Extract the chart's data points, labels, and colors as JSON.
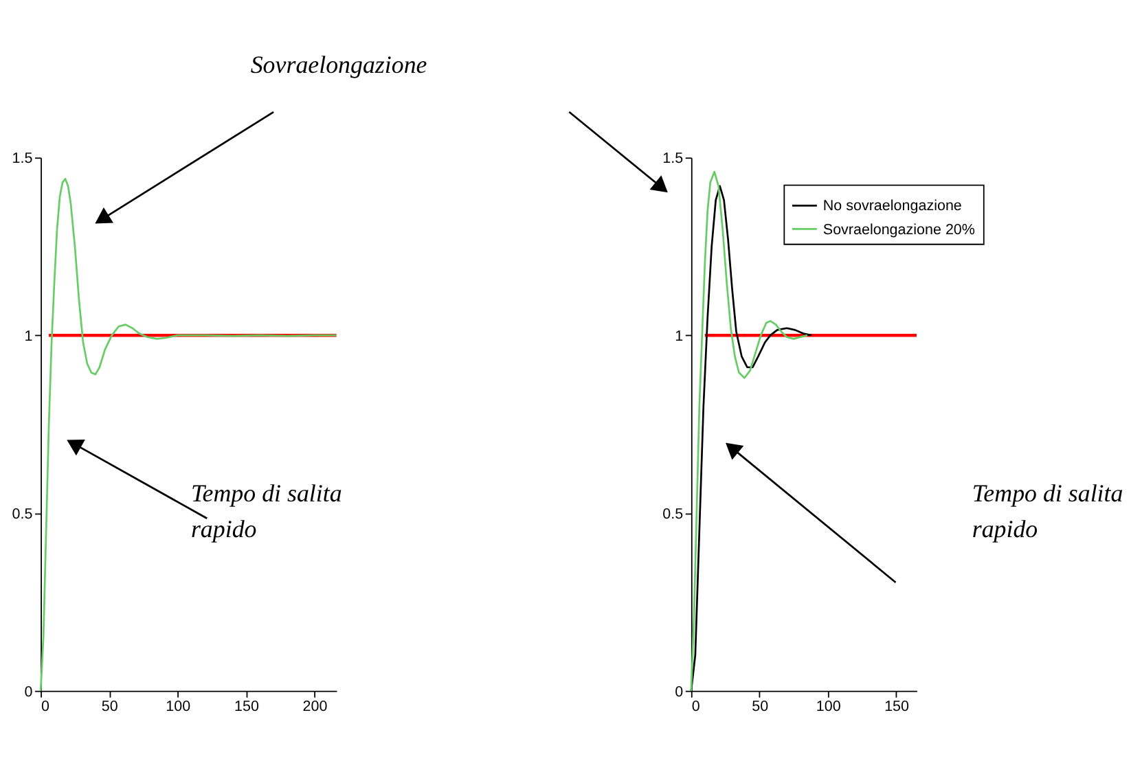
{
  "chart_data": [
    {
      "type": "line",
      "xlim": [
        0,
        216
      ],
      "ylim": [
        0,
        1.5
      ],
      "xticks": [
        0,
        50,
        100,
        150,
        200
      ],
      "yticks": [
        0,
        0.5,
        1,
        1.5
      ],
      "series": [
        {
          "color": "#66cc66",
          "x": [
            0,
            2,
            4,
            6,
            8,
            10,
            12,
            14,
            16,
            18,
            20,
            22,
            25,
            28,
            31,
            34,
            37,
            40,
            43,
            47,
            52,
            57,
            62,
            67,
            72,
            78,
            85,
            92,
            100,
            120,
            140,
            160,
            180,
            200,
            216
          ],
          "values": [
            0,
            0.15,
            0.45,
            0.75,
            0.98,
            1.15,
            1.3,
            1.39,
            1.43,
            1.44,
            1.42,
            1.37,
            1.25,
            1.1,
            0.98,
            0.92,
            0.895,
            0.89,
            0.91,
            0.96,
            1.0,
            1.025,
            1.03,
            1.02,
            1.005,
            0.995,
            0.99,
            0.993,
            1.0,
            1.0,
            0.998,
            1.0,
            0.998,
            1.0,
            1.0
          ]
        },
        {
          "color": "#ff0000",
          "x": [
            6,
            216
          ],
          "values": [
            1,
            1
          ]
        }
      ],
      "annotations": [
        "Sovraelongazione",
        "Tempo di salita rapido"
      ]
    },
    {
      "type": "line",
      "xlim": [
        0,
        165
      ],
      "ylim": [
        0,
        1.5
      ],
      "xticks": [
        0,
        50,
        100,
        150
      ],
      "yticks": [
        0,
        0.5,
        1,
        1.5
      ],
      "legend": "top right",
      "series": [
        {
          "name": "No sovraelongazione",
          "color": "#000000",
          "x": [
            0,
            3,
            6,
            9,
            12,
            15,
            18,
            21,
            24,
            27,
            30,
            33,
            37,
            41,
            45,
            49,
            54,
            58,
            63,
            70,
            76,
            82,
            88
          ],
          "values": [
            0,
            0.1,
            0.45,
            0.8,
            1.05,
            1.25,
            1.38,
            1.42,
            1.38,
            1.27,
            1.13,
            1.01,
            0.94,
            0.91,
            0.91,
            0.94,
            0.98,
            1.0,
            1.015,
            1.02,
            1.015,
            1.005,
            1.0
          ]
        },
        {
          "name": "Sovraelongazione 20%",
          "color": "#66cc66",
          "x": [
            0,
            2,
            4,
            6,
            8,
            10,
            12,
            14,
            17,
            20,
            23,
            26,
            29,
            32,
            35,
            39,
            43,
            47,
            51,
            55,
            58,
            62,
            66,
            70,
            75,
            80,
            85
          ],
          "values": [
            0,
            0.2,
            0.5,
            0.8,
            1.0,
            1.2,
            1.35,
            1.43,
            1.46,
            1.42,
            1.3,
            1.15,
            1.02,
            0.94,
            0.895,
            0.88,
            0.9,
            0.95,
            1.0,
            1.035,
            1.04,
            1.03,
            1.01,
            0.995,
            0.99,
            0.995,
            1.0
          ]
        },
        {
          "color": "#ff0000",
          "x": [
            10,
            165
          ],
          "values": [
            1,
            1
          ]
        }
      ],
      "annotations": [
        "Tempo di salita rapido"
      ]
    }
  ]
}
